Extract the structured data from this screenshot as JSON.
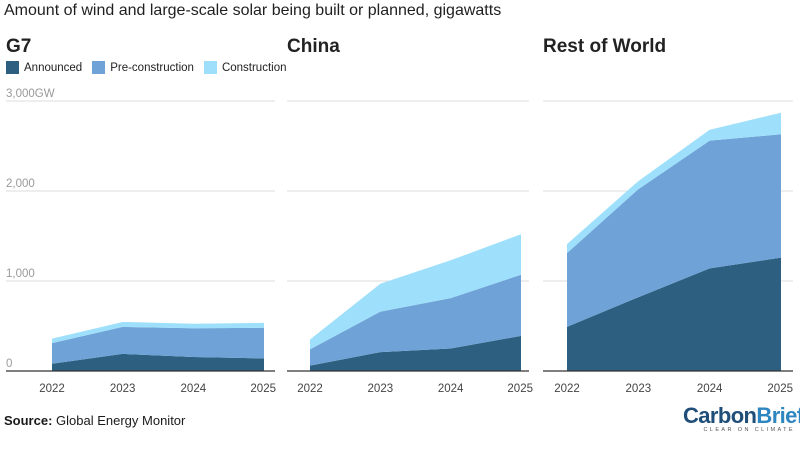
{
  "title": "Amount of wind and large-scale solar being built or planned, gigawatts",
  "legend": [
    {
      "label": "Announced",
      "color": "#2d5f80"
    },
    {
      "label": "Pre-construction",
      "color": "#6fa3d8"
    },
    {
      "label": "Construction",
      "color": "#9ee0fb"
    }
  ],
  "y_ticks": [
    "0",
    "1,000",
    "2,000",
    "3,000GW"
  ],
  "source": {
    "label": "Source:",
    "text": "Global Energy Monitor"
  },
  "logo": {
    "carbon": "Carbon",
    "brief": "Brief",
    "tagline": "CLEAR ON CLIMATE"
  },
  "chart_data": [
    {
      "type": "area",
      "stacked": true,
      "title": "G7",
      "categories": [
        "2022",
        "2023",
        "2024",
        "2025"
      ],
      "ylim": [
        0,
        3000
      ],
      "yunit": "GW",
      "series": [
        {
          "name": "Announced",
          "values": [
            80,
            190,
            155,
            140
          ]
        },
        {
          "name": "Pre-construction",
          "values": [
            230,
            300,
            320,
            340
          ]
        },
        {
          "name": "Construction",
          "values": [
            50,
            55,
            50,
            55
          ]
        }
      ]
    },
    {
      "type": "area",
      "stacked": true,
      "title": "China",
      "categories": [
        "2022",
        "2023",
        "2024",
        "2025"
      ],
      "ylim": [
        0,
        3000
      ],
      "yunit": "GW",
      "series": [
        {
          "name": "Announced",
          "values": [
            60,
            210,
            250,
            390
          ]
        },
        {
          "name": "Pre-construction",
          "values": [
            180,
            450,
            560,
            680
          ]
        },
        {
          "name": "Construction",
          "values": [
            110,
            310,
            420,
            450
          ]
        }
      ]
    },
    {
      "type": "area",
      "stacked": true,
      "title": "Rest of World",
      "categories": [
        "2022",
        "2023",
        "2024",
        "2025"
      ],
      "ylim": [
        0,
        3000
      ],
      "yunit": "GW",
      "series": [
        {
          "name": "Announced",
          "values": [
            490,
            820,
            1140,
            1260
          ]
        },
        {
          "name": "Pre-construction",
          "values": [
            820,
            1200,
            1420,
            1370
          ]
        },
        {
          "name": "Construction",
          "values": [
            100,
            90,
            120,
            240
          ]
        }
      ]
    }
  ]
}
